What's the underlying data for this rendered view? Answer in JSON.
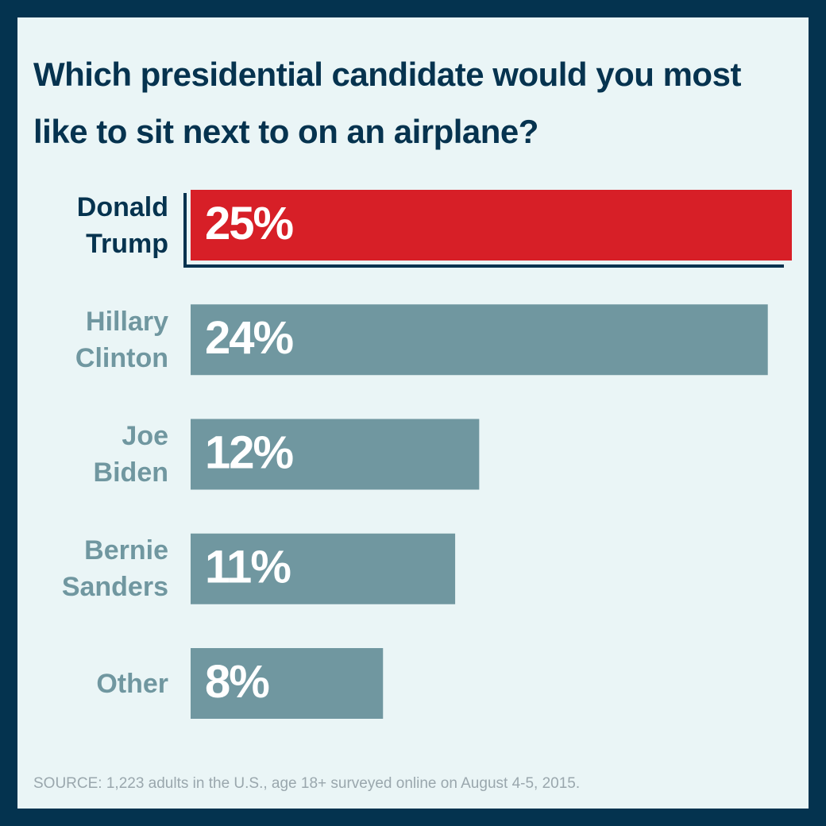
{
  "chart_data": {
    "type": "bar",
    "orientation": "horizontal",
    "title": "Which presidential candidate would you most like to sit next to on an airplane?",
    "categories": [
      "Donald Trump",
      "Hillary Clinton",
      "Joe Biden",
      "Bernie Sanders",
      "Other"
    ],
    "values": [
      25,
      24,
      12,
      11,
      8
    ],
    "value_labels": [
      "25%",
      "24%",
      "12%",
      "11%",
      "8%"
    ],
    "colors": [
      "#d71f27",
      "#7097a0",
      "#7097a0",
      "#7097a0",
      "#7097a0"
    ],
    "label_colors": [
      "#06334f",
      "#7097a0",
      "#7097a0",
      "#7097a0",
      "#7097a0"
    ],
    "source": "SOURCE: 1,223 adults in the U.S., age 18+ surveyed online on August 4-5, 2015."
  }
}
